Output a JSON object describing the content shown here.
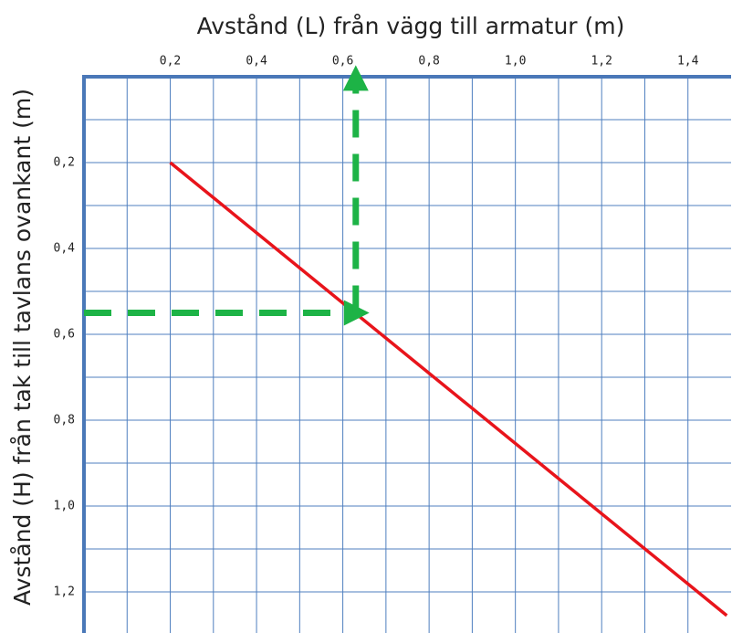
{
  "chart_data": {
    "type": "line",
    "title": "Avstånd (L) från vägg till armatur (m)",
    "y_label": "Avstånd (H) från tak till tavlans ovankant (m)",
    "xlim": [
      0,
      1.5
    ],
    "ylim": [
      0,
      1.3
    ],
    "y_inverted": true,
    "x_axis_position": "top",
    "grid": true,
    "grid_color": "#4f7fbf",
    "axis_color": "#4a78b8",
    "xticks": [
      {
        "value": 0.2,
        "label": "0,2"
      },
      {
        "value": 0.4,
        "label": "0,4"
      },
      {
        "value": 0.6,
        "label": "0,6"
      },
      {
        "value": 0.8,
        "label": "0,8"
      },
      {
        "value": 1.0,
        "label": "1,0"
      },
      {
        "value": 1.2,
        "label": "1,2"
      },
      {
        "value": 1.4,
        "label": "1,4"
      }
    ],
    "x_minor_ticks": [
      0.1,
      0.3,
      0.5,
      0.7,
      0.9,
      1.1,
      1.3
    ],
    "yticks": [
      {
        "value": 0.2,
        "label": "0,2"
      },
      {
        "value": 0.4,
        "label": "0,4"
      },
      {
        "value": 0.6,
        "label": "0,6"
      },
      {
        "value": 0.8,
        "label": "0,8"
      },
      {
        "value": 1.0,
        "label": "1,0"
      },
      {
        "value": 1.2,
        "label": "1,2"
      }
    ],
    "y_minor_ticks": [
      0.1,
      0.3,
      0.5,
      0.7,
      0.9,
      1.1
    ],
    "series": [
      {
        "color": "#e8141b",
        "x": [
          0.2,
          1.49
        ],
        "values": [
          0.2,
          1.255
        ]
      },
      {
        "color": "#1db346",
        "dashed": true,
        "arrow": true,
        "x": [
          0,
          0.635
        ],
        "values": [
          0.55,
          0.55
        ]
      },
      {
        "color": "#1db346",
        "dashed": true,
        "arrow": true,
        "x": [
          0.63,
          0.63
        ],
        "values": [
          0.55,
          0.0
        ]
      }
    ]
  }
}
